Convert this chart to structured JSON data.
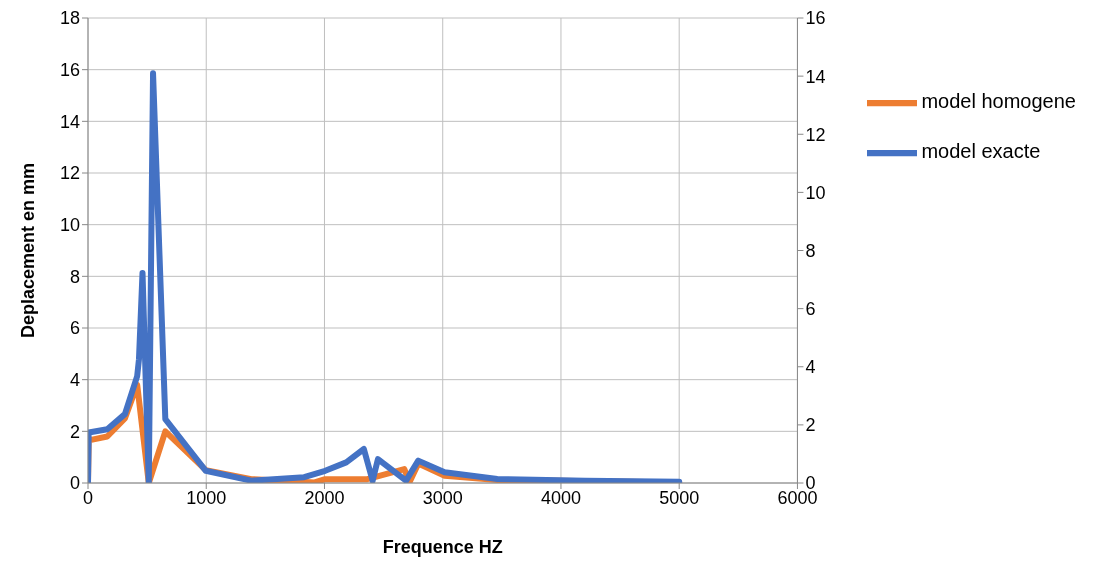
{
  "chart_data": {
    "type": "line",
    "xlabel": "Frequence HZ",
    "ylabel": "Deplacement en mm",
    "xlim": [
      0,
      6000
    ],
    "xticks": [
      0,
      1000,
      2000,
      3000,
      4000,
      5000,
      6000
    ],
    "ylim": [
      0,
      18
    ],
    "yticks": [
      0,
      2,
      4,
      6,
      8,
      10,
      12,
      14,
      16,
      18
    ],
    "y2lim": [
      0,
      16
    ],
    "y2ticks": [
      0,
      2,
      4,
      6,
      8,
      10,
      12,
      14,
      16
    ],
    "grid": true,
    "legend": "right",
    "marker": "none",
    "line_style": "solid",
    "series": [
      {
        "name": "model homogene",
        "color": "#ed7d31",
        "x": [
          0,
          6,
          163,
          312,
          416,
          461,
          514,
          550,
          654,
          996,
          1382,
          1917,
          2006,
          2362,
          2675,
          2719,
          2793,
          3016,
          3462,
          4205,
          5000
        ],
        "values": [
          0,
          1.65,
          1.8,
          2.5,
          3.8,
          null,
          0,
          null,
          2,
          0.5,
          0.15,
          0.02,
          0.15,
          0.15,
          0.54,
          0.03,
          0.75,
          0.28,
          0.12,
          null,
          0.02
        ]
      },
      {
        "name": "model exacte",
        "color": "#4472c4",
        "axis": "y2",
        "x": [
          0,
          6,
          163,
          312,
          416,
          431,
          461,
          514,
          550,
          654,
          996,
          1382,
          1828,
          2006,
          2184,
          2333,
          2407,
          2452,
          2690,
          2793,
          3016,
          3462,
          4205,
          5000
        ],
        "values": [
          0,
          1.74,
          1.85,
          2.37,
          3.68,
          4.26,
          7.23,
          0,
          14.1,
          2.2,
          0.42,
          0.08,
          0.2,
          0.42,
          0.71,
          1.17,
          0.08,
          0.82,
          0.08,
          0.77,
          0.37,
          0.14,
          0.08,
          0.04
        ]
      }
    ]
  }
}
